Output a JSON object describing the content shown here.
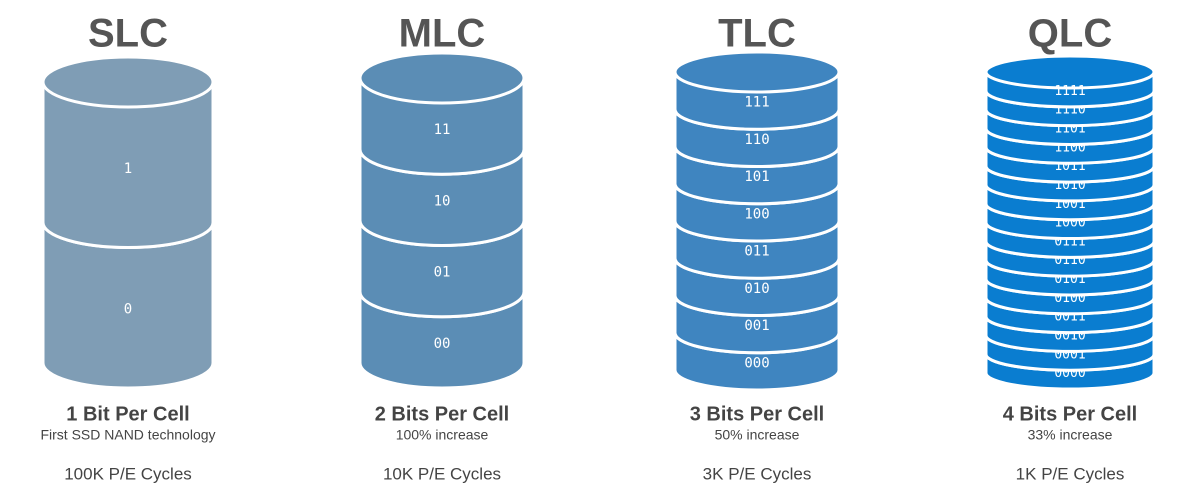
{
  "columns": [
    {
      "title": "SLC",
      "levels": [
        "1",
        "0"
      ],
      "heading": "1 Bit Per Cell",
      "subtitle": "First SSD NAND technology",
      "cycles": "100K P/E Cycles"
    },
    {
      "title": "MLC",
      "levels": [
        "11",
        "10",
        "01",
        "00"
      ],
      "heading": "2 Bits Per Cell",
      "subtitle": "100% increase",
      "cycles": "10K P/E Cycles"
    },
    {
      "title": "TLC",
      "levels": [
        "111",
        "110",
        "101",
        "100",
        "011",
        "010",
        "001",
        "000"
      ],
      "heading": "3 Bits Per Cell",
      "subtitle": "50% increase",
      "cycles": "3K P/E Cycles"
    },
    {
      "title": "QLC",
      "levels": [
        "1111",
        "1110",
        "1101",
        "1100",
        "1011",
        "1010",
        "1001",
        "1000",
        "0111",
        "0110",
        "0101",
        "0100",
        "0011",
        "0010",
        "0001",
        "0000"
      ],
      "heading": "4 Bits Per Cell",
      "subtitle": "33% increase",
      "cycles": "1K P/E Cycles"
    }
  ]
}
